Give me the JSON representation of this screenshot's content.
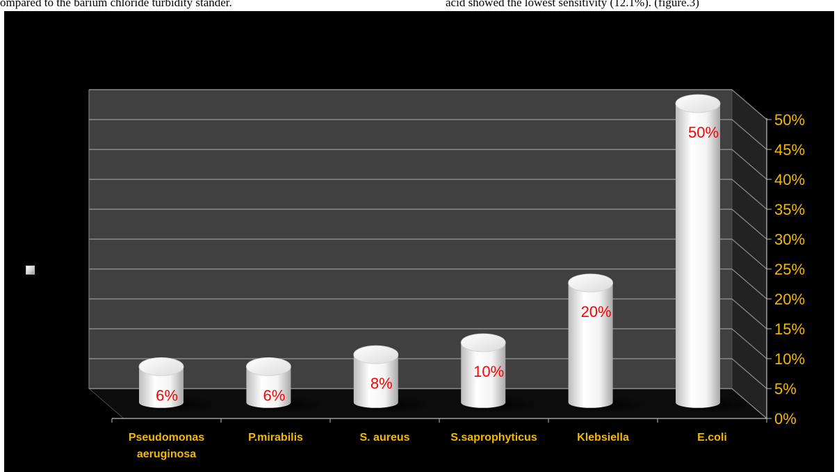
{
  "page": {
    "top_left_text": "ompared to the barium chloride turbidity stander.",
    "top_right_text": "acid showed the lowest sensitivity (12.1%). (figure.3)"
  },
  "legend": {
    "entries": [
      ""
    ]
  },
  "colors": {
    "background": "#000000",
    "back_wall": "#404040",
    "side_wall": "#222222",
    "bar": "#ffffff",
    "data_label": "#ff0000",
    "category_label": "#f5b800",
    "tick_label": "#f5b800",
    "grid": "#8a8a8a"
  },
  "chart_data": {
    "type": "bar",
    "style": "3d-cylinder",
    "categories": [
      "Pseudomonas aeruginosa",
      "P.mirabilis",
      "S. aureus",
      "S.saprophyticus",
      "Klebsiella",
      "E.coli"
    ],
    "category_lines": [
      [
        "Pseudomonas",
        "aeruginosa"
      ],
      [
        "P.mirabilis"
      ],
      [
        "S. aureus"
      ],
      [
        "S.saprophyticus"
      ],
      [
        "Klebsiella"
      ],
      [
        "E.coli"
      ]
    ],
    "values": [
      6,
      6,
      8,
      10,
      20,
      50
    ],
    "data_labels": [
      "6%",
      "6%",
      "8%",
      "10%",
      "20%",
      "50%"
    ],
    "y_ticks": [
      "0%",
      "5%",
      "10%",
      "15%",
      "20%",
      "25%",
      "30%",
      "35%",
      "40%",
      "45%",
      "50%"
    ],
    "ylim": [
      0,
      50
    ],
    "title": "",
    "xlabel": "",
    "ylabel": "",
    "grid": true,
    "y_axis_side": "right",
    "legend_position": "left"
  }
}
